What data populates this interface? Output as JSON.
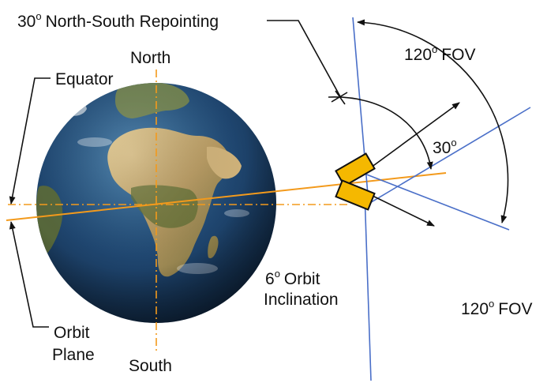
{
  "labels": {
    "repointing": {
      "value": "30",
      "unit": "o",
      "text": "North-South Repointing"
    },
    "north": "North",
    "south": "South",
    "equator": "Equator",
    "orbit_plane_line1": "Orbit",
    "orbit_plane_line2": "Plane",
    "inclination": {
      "value": "6",
      "unit": "o",
      "text": "Orbit",
      "line2": "Inclination"
    },
    "fov_upper": {
      "value": "120",
      "unit": "o",
      "text": "FOV"
    },
    "fov_lower": {
      "value": "120",
      "unit": "o",
      "text": "FOV"
    },
    "angle_30": {
      "value": "30",
      "unit": "o"
    }
  },
  "colors": {
    "orbit_line": "#f39a1c",
    "equator_line": "#f39a1c",
    "fov_line": "#4a6fc8",
    "satellite_fill": "#f5b800",
    "satellite_stroke": "#111111",
    "arrow": "#111111",
    "ocean": "#1d3d63",
    "land": "#c9ad7a"
  },
  "icons": [
    "earth-globe-icon",
    "satellite-icon"
  ]
}
